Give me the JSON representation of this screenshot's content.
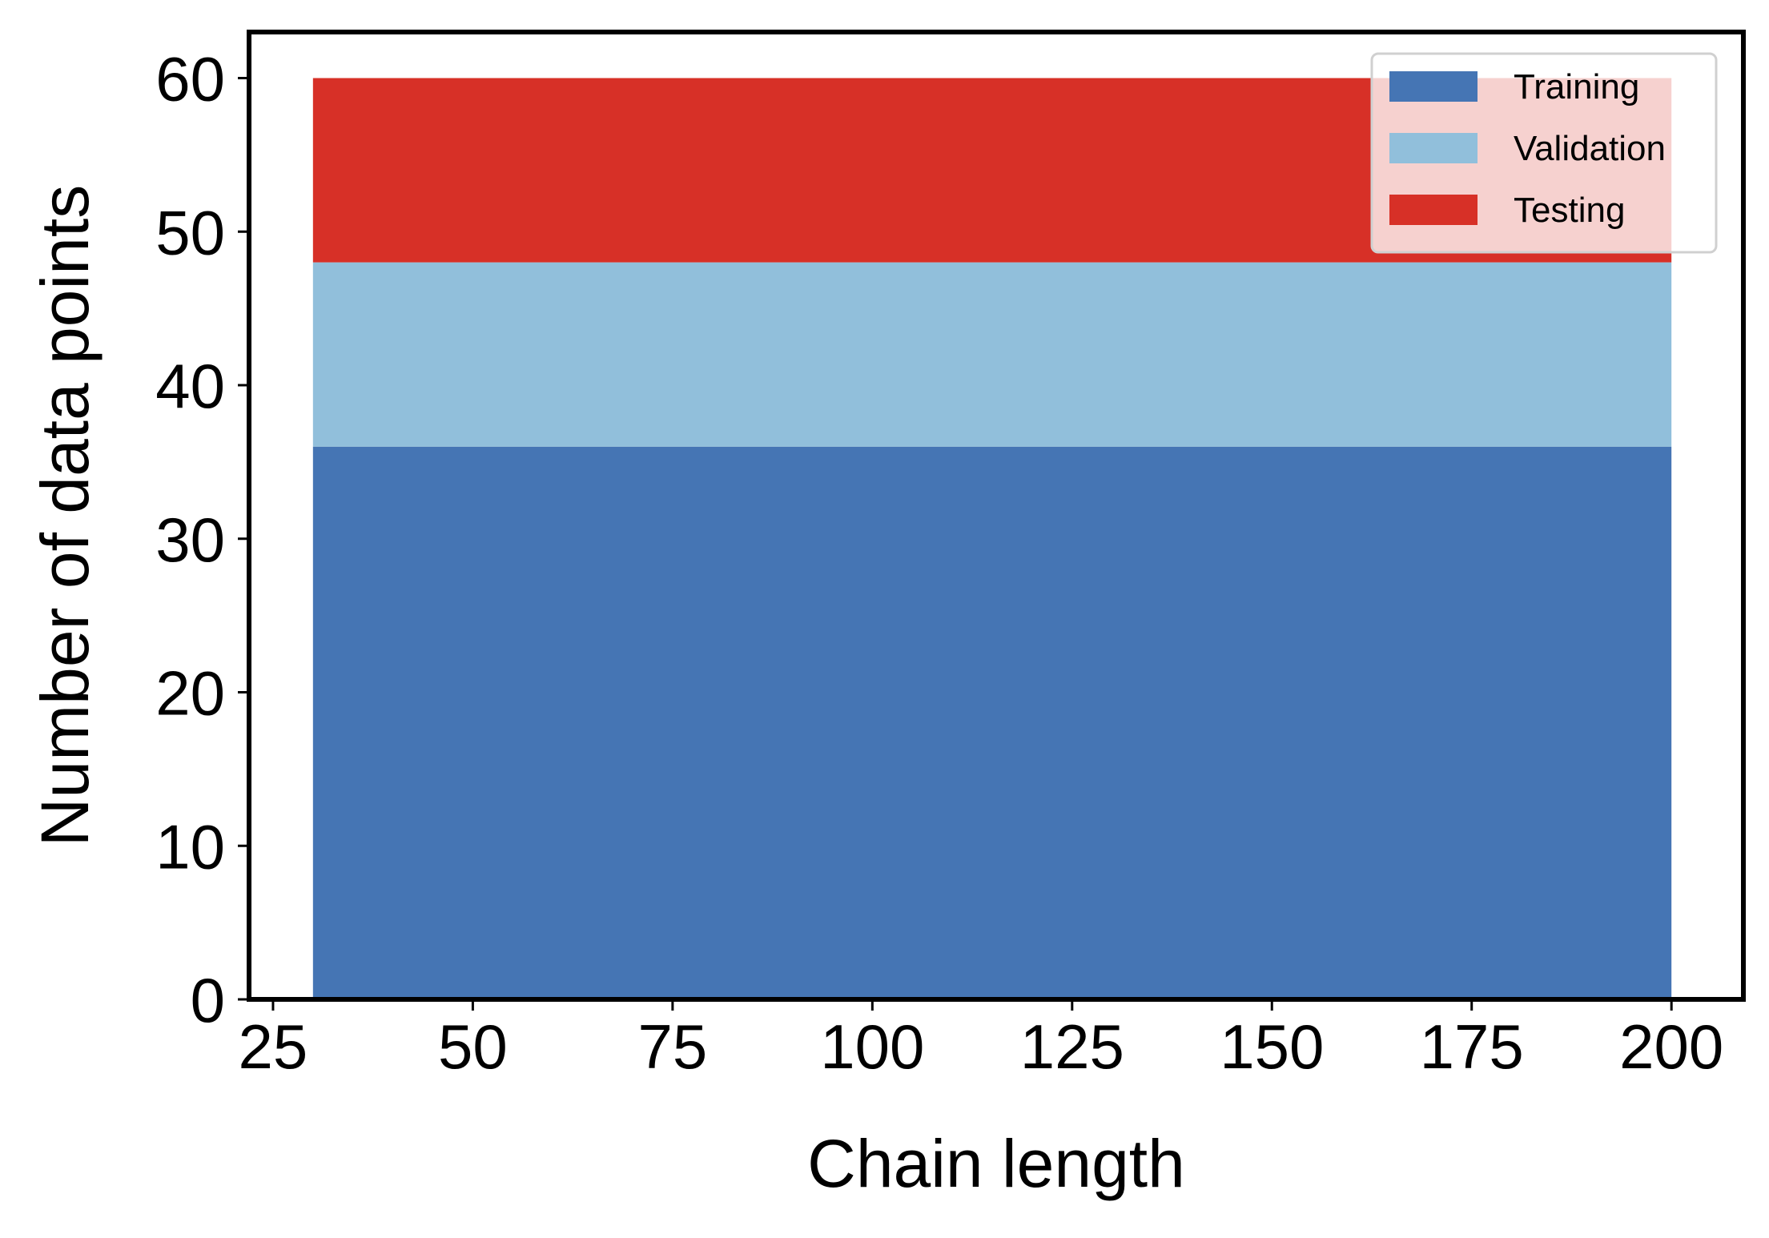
{
  "chart_data": {
    "type": "area",
    "stacked": true,
    "title": "",
    "xlabel": "Chain length",
    "ylabel": "Number of data points",
    "xlim": [
      22,
      209
    ],
    "ylim": [
      0,
      63
    ],
    "xticks": [
      25,
      50,
      75,
      100,
      125,
      150,
      175,
      200
    ],
    "yticks": [
      0,
      10,
      20,
      30,
      40,
      50,
      60
    ],
    "grid": false,
    "legend_position": "top-right",
    "x": [
      30,
      200
    ],
    "series": [
      {
        "name": "Training",
        "values": [
          36,
          36
        ],
        "color": "#4575b4"
      },
      {
        "name": "Validation",
        "values": [
          12,
          12
        ],
        "color": "#91bfdb"
      },
      {
        "name": "Testing",
        "values": [
          12,
          12
        ],
        "color": "#d73027"
      }
    ]
  }
}
